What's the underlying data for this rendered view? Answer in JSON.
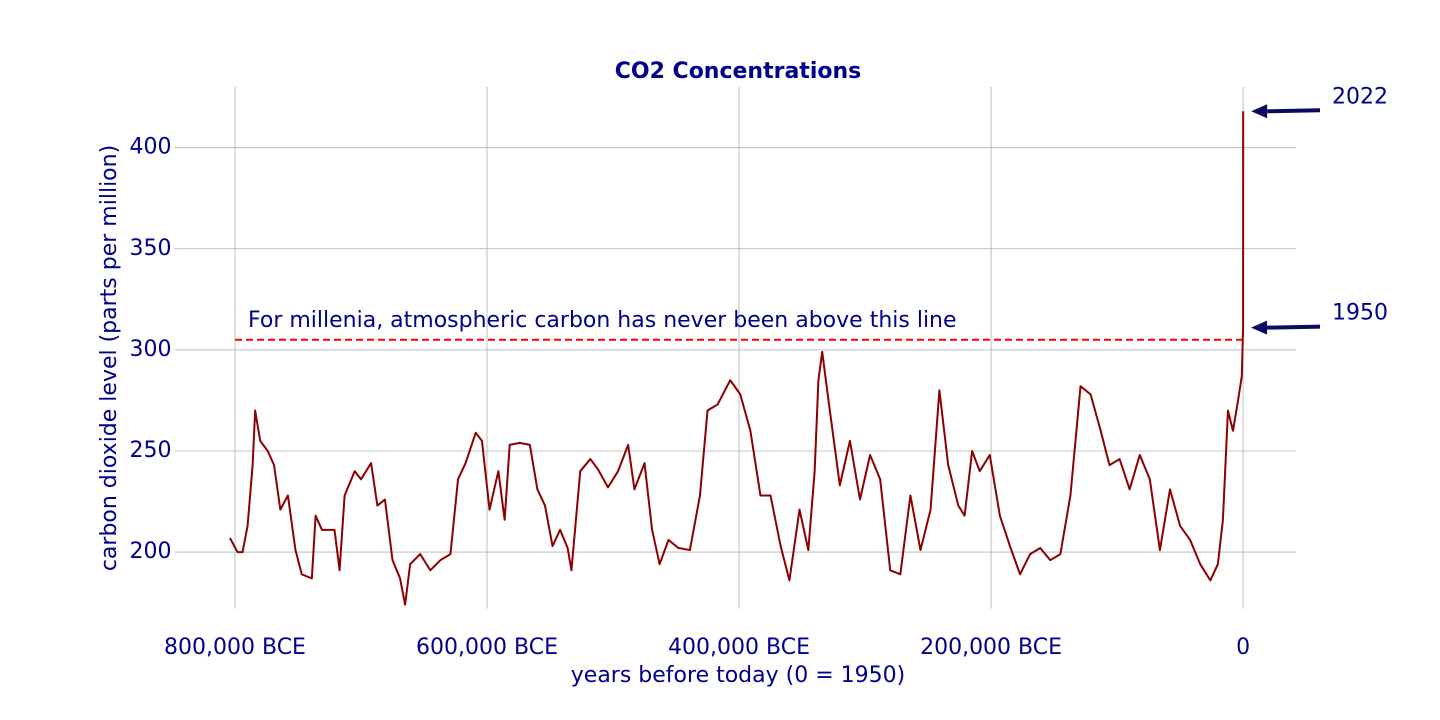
{
  "chart_data": {
    "type": "line",
    "title": "CO2 Concentrations",
    "x_label": "years before today (0 = 1950)",
    "y_label": "carbon dioxide level (parts per million)",
    "color": "#8b0000",
    "grid": true,
    "xlim": [
      -848000,
      42000
    ],
    "ylim": [
      172,
      430
    ],
    "xticks": [
      {
        "value": -800000,
        "label": "800,000 BCE"
      },
      {
        "value": -600000,
        "label": "600,000 BCE"
      },
      {
        "value": -400000,
        "label": "400,000 BCE"
      },
      {
        "value": -200000,
        "label": "200,000 BCE"
      },
      0
    ],
    "yticks": [
      200,
      250,
      300,
      350,
      400
    ],
    "x": [
      -804000,
      -798000,
      -794000,
      -790000,
      -786000,
      -784000,
      -780000,
      -774000,
      -769000,
      -764000,
      -758000,
      -752000,
      -747000,
      -739000,
      -736000,
      -731000,
      -721000,
      -717000,
      -713000,
      -705000,
      -700000,
      -692000,
      -687000,
      -681000,
      -675000,
      -669000,
      -665000,
      -661000,
      -653000,
      -645000,
      -637000,
      -629000,
      -623000,
      -617000,
      -609000,
      -604000,
      -598000,
      -591000,
      -586000,
      -582000,
      -574000,
      -566000,
      -560000,
      -554000,
      -548000,
      -542000,
      -536000,
      -533000,
      -526000,
      -518000,
      -512000,
      -504000,
      -496000,
      -488000,
      -483000,
      -475000,
      -469000,
      -463000,
      -456000,
      -448000,
      -439000,
      -431000,
      -425000,
      -417000,
      -407000,
      -399000,
      -391000,
      -383000,
      -375000,
      -367000,
      -360000,
      -352000,
      -345000,
      -340000,
      -337000,
      -334000,
      -329000,
      -320000,
      -312000,
      -304000,
      -296000,
      -288000,
      -280000,
      -272000,
      -264000,
      -256000,
      -248000,
      -241000,
      -234000,
      -226000,
      -221000,
      -215000,
      -209000,
      -201000,
      -193000,
      -185000,
      -177000,
      -169000,
      -161000,
      -153000,
      -145000,
      -137000,
      -129000,
      -121000,
      -113000,
      -106000,
      -98000,
      -90000,
      -82000,
      -74000,
      -66000,
      -58000,
      -50000,
      -42000,
      -34000,
      -26000,
      -20000,
      -16000,
      -12000,
      -8000,
      -4000,
      -1000,
      0,
      10,
      20,
      30,
      40,
      50,
      60,
      72
    ],
    "values": [
      207,
      200,
      200,
      213,
      243,
      270,
      255,
      250,
      243,
      221,
      228,
      201,
      189,
      187,
      218,
      211,
      211,
      191,
      228,
      240,
      236,
      244,
      223,
      226,
      196,
      187,
      174,
      194,
      199,
      191,
      196,
      199,
      236,
      244,
      259,
      255,
      221,
      240,
      216,
      253,
      254,
      253,
      231,
      223,
      203,
      211,
      202,
      191,
      240,
      246,
      241,
      232,
      240,
      253,
      231,
      244,
      211,
      194,
      206,
      202,
      201,
      228,
      270,
      273,
      285,
      278,
      260,
      228,
      228,
      203,
      186,
      221,
      201,
      240,
      285,
      299,
      275,
      233,
      255,
      226,
      248,
      236,
      191,
      189,
      228,
      201,
      221,
      280,
      243,
      223,
      218,
      250,
      240,
      248,
      218,
      203,
      189,
      199,
      202,
      196,
      199,
      228,
      282,
      278,
      260,
      243,
      246,
      231,
      248,
      236,
      201,
      231,
      213,
      206,
      194,
      186,
      194,
      216,
      270,
      260,
      275,
      287,
      311,
      316,
      325,
      338,
      353,
      369,
      389,
      418
    ],
    "reference_line": {
      "value": 305,
      "label": "For millenia, atmospheric carbon has never been above this line",
      "color": "#ff0000"
    },
    "annotations": [
      {
        "text": "2022",
        "x": 72,
        "y": 418
      },
      {
        "text": "1950",
        "x": 0,
        "y": 311
      }
    ]
  }
}
